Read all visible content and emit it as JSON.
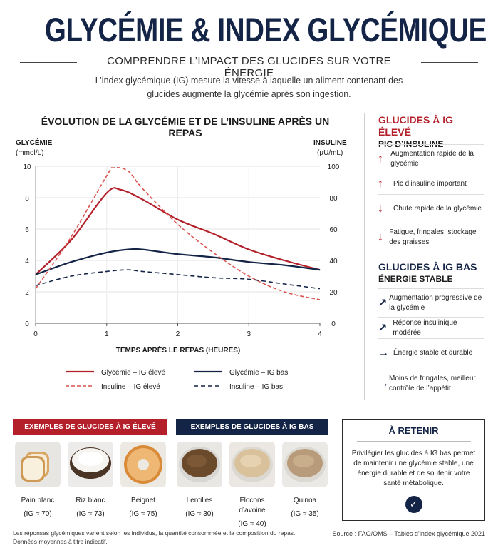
{
  "header": {
    "title": "GLYCÉMIE & INDEX GLYCÉMIQUE",
    "subtitle": "COMPRENDRE L’IMPACT DES GLUCIDES SUR VOTRE ÉNERGIE",
    "intro": "L’index glycémique (IG) mesure la vitesse à laquelle un aliment contenant des glucides augmente la glycémie après son ingestion."
  },
  "chart_data": {
    "type": "line",
    "title": "ÉVOLUTION DE LA GLYCÉMIE ET DE L’INSULINE APRÈS UN REPAS",
    "xlabel": "TEMPS APRÈS LE REPAS (HEURES)",
    "ylabel_left": [
      "GLYCÉMIE",
      "(mmol/L)"
    ],
    "ylabel_right": [
      "INSULINE",
      "(µU/mL)"
    ],
    "xlim": [
      0,
      4
    ],
    "ylim_left": [
      0,
      10
    ],
    "ylim_right": [
      0,
      100
    ],
    "x_ticks": [
      "0",
      "1",
      "2",
      "3",
      "4"
    ],
    "y_ticks_left": [
      "0",
      "2",
      "4",
      "6",
      "8",
      "10"
    ],
    "y_ticks_right": [
      "0",
      "20",
      "40",
      "60",
      "80",
      "100"
    ],
    "grid": true,
    "legend_position": "bottom",
    "series": [
      {
        "name": "Glycémie – IG élevé",
        "axis": "left",
        "color": "#b3202a",
        "dash": false,
        "x": [
          0,
          0.5,
          1,
          1.2,
          1.5,
          2,
          2.5,
          3,
          3.5,
          4
        ],
        "y": [
          3.1,
          5.3,
          8.3,
          8.5,
          7.9,
          6.6,
          5.7,
          4.7,
          4.0,
          3.4
        ]
      },
      {
        "name": "Glycémie – IG bas",
        "axis": "left",
        "color": "#142447",
        "dash": false,
        "x": [
          0,
          0.5,
          1,
          1.3,
          1.5,
          2,
          2.5,
          3,
          3.5,
          4
        ],
        "y": [
          3.1,
          3.9,
          4.5,
          4.7,
          4.7,
          4.4,
          4.2,
          3.9,
          3.7,
          3.4
        ]
      },
      {
        "name": "Insuline – IG élevé",
        "axis": "right",
        "color": "#d9534f",
        "dash": true,
        "x": [
          0,
          0.5,
          1,
          1.1,
          1.3,
          1.5,
          2,
          2.5,
          3,
          3.5,
          4
        ],
        "y": [
          22,
          55,
          94,
          99,
          97,
          86,
          63,
          45,
          30,
          20,
          15
        ]
      },
      {
        "name": "Insuline – IG bas",
        "axis": "right",
        "color": "#142447",
        "dash": true,
        "x": [
          0,
          0.5,
          1,
          1.3,
          1.5,
          2,
          2.5,
          3,
          3.5,
          4
        ],
        "y": [
          24,
          30,
          33,
          34,
          33,
          31,
          29,
          28,
          25,
          22
        ]
      }
    ]
  },
  "high": {
    "title": "GLUCIDES À IG ÉLEVÉ",
    "sub": "PIC D’INSULINE",
    "items": [
      {
        "icon": "arrow-up-icon",
        "glyph": "↑",
        "text": "Augmentation rapide de la glycémie"
      },
      {
        "icon": "arrow-up-icon",
        "glyph": "↑",
        "text": "Pic d’insuline important"
      },
      {
        "icon": "arrow-down-icon",
        "glyph": "↓",
        "text": "Chute rapide de la glycémie"
      },
      {
        "icon": "arrow-down-icon",
        "glyph": "↓",
        "text": "Fatigue, fringales, stockage des graisses"
      }
    ]
  },
  "low": {
    "title": "GLUCIDES À IG BAS",
    "sub": "ÉNERGIE STABLE",
    "items": [
      {
        "icon": "arrow-up-right-icon",
        "glyph": "↗",
        "text": "Augmentation progressive de la glycémie"
      },
      {
        "icon": "arrow-up-right-icon",
        "glyph": "↗",
        "text": "Réponse insulinique modérée"
      },
      {
        "icon": "arrow-right-icon",
        "glyph": "→",
        "text": "Énergie stable et durable"
      },
      {
        "icon": "arrow-right-icon",
        "glyph": "→",
        "text": "Moins de fringales, meilleur contrôle de l’appétit"
      }
    ]
  },
  "examples_high": {
    "title": "EXEMPLES DE GLUCIDES À IG ÉLEVÉ",
    "color": "#b3202a",
    "foods": [
      {
        "name": "Pain blanc",
        "ig": "(IG ≈ 70)"
      },
      {
        "name": "Riz blanc",
        "ig": "(IG ≈ 73)"
      },
      {
        "name": "Beignet",
        "ig": "(IG ≈ 75)"
      }
    ]
  },
  "examples_low": {
    "title": "EXEMPLES DE GLUCIDES À IG BAS",
    "color": "#142447",
    "foods": [
      {
        "name": "Lentilles",
        "ig": "(IG ≈ 30)"
      },
      {
        "name": "Flocons d’avoine",
        "ig": "(IG ≈ 40)"
      },
      {
        "name": "Quinoa",
        "ig": "(IG ≈ 35)"
      }
    ]
  },
  "retenir": {
    "title": "À RETENIR",
    "text": "Privilégier les glucides à IG bas permet de maintenir une glycémie stable, une énergie durable et de soutenir votre santé métabolique.",
    "icon": "check-circle-icon"
  },
  "footer": {
    "note": "Les réponses glycémiques varient selon les individus, la quantité consommée et la composition du repas. Données moyennes à titre indicatif.",
    "source": "Source : FAO/OMS – Tables d’index glycémique 2021"
  }
}
